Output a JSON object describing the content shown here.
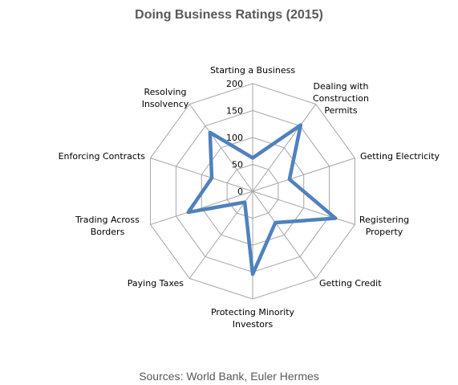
{
  "chart_data": {
    "type": "radar",
    "title": "Doing Business Ratings (2015)",
    "categories": [
      "Starting a Business",
      "Dealing with Construction Permits",
      "Getting Electricity",
      "Registering Property",
      "Getting Credit",
      "Protecting Minority Investors",
      "Paying Taxes",
      "Trading Across Borders",
      "Enforcing Contracts",
      "Resolving Insolvency"
    ],
    "category_label_lines": [
      [
        "Starting a Business"
      ],
      [
        "Dealing with",
        "Construction",
        "Permits"
      ],
      [
        "Getting Electricity"
      ],
      [
        "Registering",
        "Property"
      ],
      [
        "Getting Credit"
      ],
      [
        "Protecting Minority",
        "Investors"
      ],
      [
        "Paying Taxes"
      ],
      [
        "Trading Across",
        "Borders"
      ],
      [
        "Enforcing Contracts"
      ],
      [
        "Resolving",
        "Insolvency"
      ]
    ],
    "series": [
      {
        "name": "",
        "values": [
          62,
          152,
          72,
          162,
          72,
          154,
          25,
          126,
          80,
          135
        ]
      }
    ],
    "rlim": [
      0,
      200
    ],
    "ticks": [
      0,
      50,
      100,
      150,
      200
    ],
    "tick_labels": [
      "0",
      "50",
      "100",
      "150",
      "200"
    ],
    "grid": true,
    "series_color": "#4F81BD",
    "grid_color": "#A6A6A6"
  },
  "source": "Sources: World Bank, Euler Hermes"
}
